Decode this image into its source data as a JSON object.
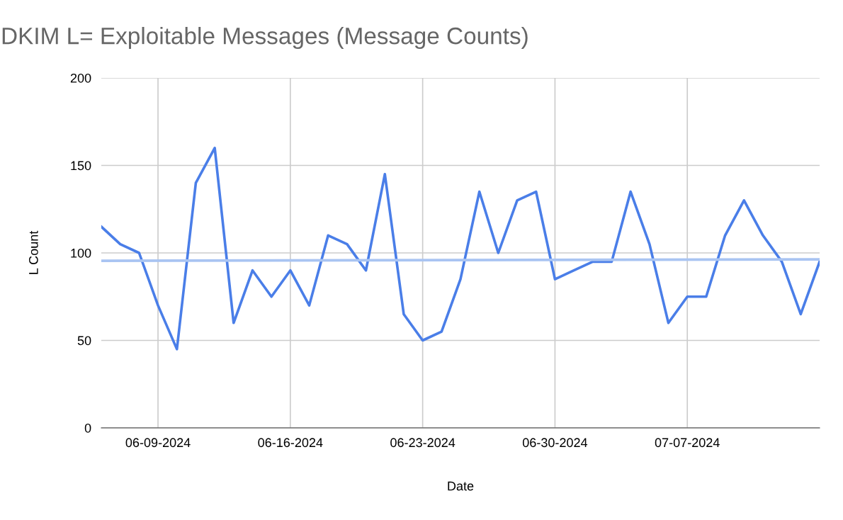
{
  "chart_data": {
    "type": "line",
    "title": "DKIM L= Exploitable Messages (Message Counts)",
    "xlabel": "Date",
    "ylabel": "L Count",
    "x": [
      "2024-06-06",
      "2024-06-07",
      "2024-06-08",
      "2024-06-09",
      "2024-06-10",
      "2024-06-11",
      "2024-06-12",
      "2024-06-13",
      "2024-06-14",
      "2024-06-15",
      "2024-06-16",
      "2024-06-17",
      "2024-06-18",
      "2024-06-19",
      "2024-06-20",
      "2024-06-21",
      "2024-06-22",
      "2024-06-23",
      "2024-06-24",
      "2024-06-25",
      "2024-06-26",
      "2024-06-27",
      "2024-06-28",
      "2024-06-29",
      "2024-06-30",
      "2024-07-01",
      "2024-07-02",
      "2024-07-03",
      "2024-07-04",
      "2024-07-05",
      "2024-07-06",
      "2024-07-07",
      "2024-07-08",
      "2024-07-09",
      "2024-07-10",
      "2024-07-11",
      "2024-07-12",
      "2024-07-13",
      "2024-07-14"
    ],
    "series": [
      {
        "color": "#4a7ee8",
        "values": [
          115,
          105,
          100,
          70,
          45,
          140,
          160,
          60,
          90,
          75,
          90,
          70,
          110,
          105,
          90,
          145,
          65,
          50,
          55,
          85,
          135,
          100,
          130,
          135,
          85,
          90,
          95,
          95,
          135,
          105,
          60,
          75,
          75,
          110,
          130,
          110,
          95,
          65,
          95
        ]
      },
      {
        "type": "line",
        "color": "#a9c4f2",
        "x": [
          "2024-06-06",
          "2024-07-14"
        ],
        "values": [
          95.5,
          96.3
        ]
      }
    ],
    "xlim": [
      "2024-06-06",
      "2024-07-14"
    ],
    "xticks": [
      {
        "value": "2024-06-09",
        "label": "06-09-2024"
      },
      {
        "value": "2024-06-16",
        "label": "06-16-2024"
      },
      {
        "value": "2024-06-23",
        "label": "06-23-2024"
      },
      {
        "value": "2024-06-30",
        "label": "06-30-2024"
      },
      {
        "value": "2024-07-07",
        "label": "07-07-2024"
      }
    ],
    "ylim": [
      0,
      200
    ],
    "yticks": [
      0,
      50,
      100,
      150,
      200
    ],
    "grid": true,
    "line_style": "solid"
  }
}
